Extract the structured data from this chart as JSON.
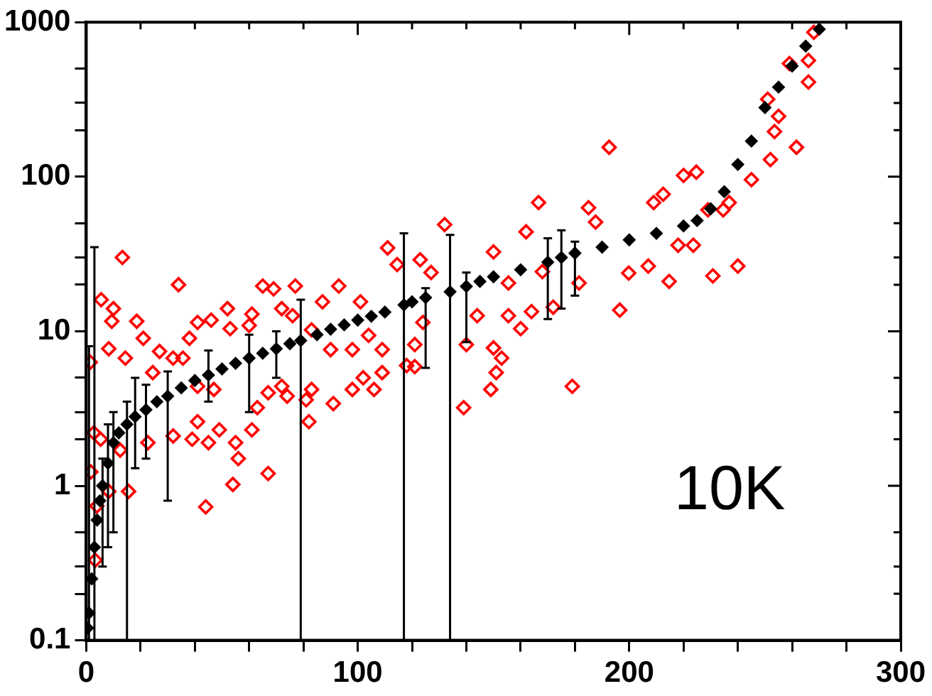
{
  "chart_data": {
    "type": "scatter",
    "log": "y",
    "grid": false,
    "legend": false,
    "marker": "diamond",
    "xlim": [
      0,
      300
    ],
    "xticks": [
      0,
      {
        "value": 20,
        "label": null
      },
      {
        "value": 40,
        "label": null
      },
      {
        "value": 60,
        "label": null
      },
      {
        "value": 80,
        "label": null
      },
      100,
      {
        "value": 120,
        "label": null
      },
      {
        "value": 140,
        "label": null
      },
      {
        "value": 160,
        "label": null
      },
      {
        "value": 180,
        "label": null
      },
      200,
      {
        "value": 220,
        "label": null
      },
      {
        "value": 240,
        "label": null
      },
      {
        "value": 260,
        "label": null
      },
      {
        "value": 280,
        "label": null
      },
      300
    ],
    "ylim": [
      0.1,
      1000
    ],
    "yticks": [
      {
        "value": 0.1,
        "label": "0.1"
      },
      {
        "value": 0.2,
        "label": null
      },
      {
        "value": 0.3,
        "label": null
      },
      {
        "value": 0.5,
        "label": null
      },
      1,
      {
        "value": 2,
        "label": null
      },
      {
        "value": 3,
        "label": null
      },
      {
        "value": 5,
        "label": null
      },
      10,
      {
        "value": 20,
        "label": null
      },
      {
        "value": 30,
        "label": null
      },
      {
        "value": 50,
        "label": null
      },
      100,
      {
        "value": 200,
        "label": null
      },
      {
        "value": 300,
        "label": null
      },
      {
        "value": 500,
        "label": null
      },
      1000
    ],
    "annotations": [
      "10K"
    ],
    "series": [
      {
        "color": "#000000",
        "x": [
          0.5,
          1,
          2,
          3,
          4,
          5,
          6,
          8,
          10,
          12,
          15,
          18,
          22,
          26,
          30,
          35,
          40,
          45,
          50,
          55,
          60,
          65,
          70,
          75,
          79,
          85,
          90,
          95,
          100,
          105,
          110,
          117,
          120,
          125,
          134,
          140,
          145,
          150,
          160,
          170,
          175,
          180,
          190,
          200,
          210,
          220,
          225,
          230,
          235,
          240,
          245,
          250,
          255,
          260,
          265,
          270
        ],
        "values": [
          0.12,
          0.15,
          0.25,
          0.4,
          0.6,
          0.8,
          1.0,
          1.4,
          1.9,
          2.2,
          2.5,
          2.8,
          3.1,
          3.5,
          3.8,
          4.3,
          4.8,
          5.2,
          5.7,
          6.2,
          6.7,
          7.2,
          7.7,
          8.3,
          8.7,
          9.5,
          10.3,
          11,
          11.8,
          12.5,
          13.3,
          14.8,
          15.5,
          16.5,
          18,
          19.5,
          21,
          22.5,
          25,
          28,
          30,
          32,
          35,
          39,
          43,
          48,
          52,
          62,
          80,
          120,
          170,
          280,
          380,
          520,
          700,
          900
        ],
        "errors": [
          null,
          [
            0.1,
            8
          ],
          null,
          [
            0.1,
            35
          ],
          null,
          null,
          [
            0.3,
            1.5
          ],
          [
            0.4,
            2.5
          ],
          [
            0.5,
            3
          ],
          null,
          [
            0.1,
            3.5
          ],
          [
            1.3,
            5
          ],
          [
            1.5,
            4.5
          ],
          null,
          [
            0.8,
            5.5
          ],
          null,
          null,
          [
            3.5,
            7.5
          ],
          null,
          null,
          [
            3,
            9.5
          ],
          null,
          [
            5,
            10
          ],
          null,
          [
            0.1,
            16
          ],
          null,
          null,
          null,
          null,
          null,
          null,
          [
            0.1,
            43
          ],
          null,
          [
            5.8,
            19
          ],
          [
            0.1,
            42
          ],
          [
            8.5,
            24
          ],
          null,
          null,
          null,
          [
            12,
            40
          ],
          [
            14,
            45
          ],
          [
            17,
            38
          ],
          null,
          null,
          null,
          null,
          null,
          null,
          null,
          null,
          null,
          null,
          null,
          null,
          null,
          null
        ]
      },
      {
        "color": "#ff0000",
        "x": [
          13.3,
          5.5,
          10,
          9.4,
          8.3,
          14.4,
          18.6,
          21,
          34,
          27,
          24.5,
          2.8,
          5.3,
          1.7,
          3.9,
          3.3,
          1.5,
          8.3,
          15.6,
          12.5,
          22.7,
          32,
          41,
          39,
          45,
          44,
          54,
          67,
          56,
          55,
          61,
          63,
          49,
          41,
          47,
          38,
          41,
          46,
          52,
          53,
          35.6,
          32,
          60,
          61,
          65,
          69,
          72,
          77,
          76,
          67,
          72,
          74,
          82,
          83,
          81,
          83,
          87,
          93,
          91,
          90,
          98,
          98,
          101,
          102,
          106,
          104,
          109,
          109,
          111,
          114.5,
          118,
          121,
          121,
          124,
          123,
          127,
          132,
          139,
          140,
          149,
          151,
          153,
          150,
          144,
          155.5,
          160,
          166.6,
          162,
          155.5,
          150,
          179,
          172,
          181.5,
          185,
          187.6,
          192.6,
          196.5,
          199.8,
          207,
          214.7,
          212.5,
          209,
          220,
          224.7,
          218,
          223.6,
          230.8,
          240,
          236.8,
          245,
          252,
          261.6,
          253.5,
          255,
          251,
          266,
          259,
          266,
          268,
          229,
          234.6,
          168,
          164
        ],
        "values": [
          30,
          16,
          14,
          11.6,
          7.7,
          6.7,
          11.6,
          9,
          20,
          7.4,
          5.4,
          2.2,
          2,
          1.23,
          0.74,
          0.33,
          6.3,
          0.92,
          0.92,
          1.7,
          1.9,
          2.1,
          2.6,
          2,
          1.9,
          0.73,
          1.02,
          1.2,
          1.5,
          1.9,
          2.3,
          3.2,
          2.3,
          4.4,
          4.2,
          9,
          11.4,
          11.8,
          14,
          10.4,
          6.7,
          6.7,
          10.9,
          12.9,
          19.6,
          18.8,
          14,
          19.6,
          12.6,
          4,
          4.4,
          3.8,
          2.6,
          4.2,
          3.6,
          10.2,
          15.5,
          19.6,
          3.4,
          7.6,
          4.2,
          7.6,
          15.5,
          5,
          4.2,
          9.4,
          7.6,
          5.4,
          34.6,
          27,
          6,
          5.9,
          8.2,
          11.4,
          29,
          24,
          49,
          3.2,
          8.2,
          4.2,
          5.4,
          6.7,
          7.8,
          12.6,
          12.6,
          10.4,
          68,
          44,
          20.5,
          32.6,
          4.4,
          14.3,
          20.5,
          63,
          50.8,
          155,
          13.7,
          23.8,
          26.4,
          21,
          77,
          68,
          102,
          107,
          36,
          36,
          22.8,
          26.4,
          68,
          95.6,
          129,
          155,
          196,
          246,
          317,
          410,
          540,
          565,
          860,
          61,
          61,
          24.3,
          13.4
        ]
      }
    ]
  }
}
